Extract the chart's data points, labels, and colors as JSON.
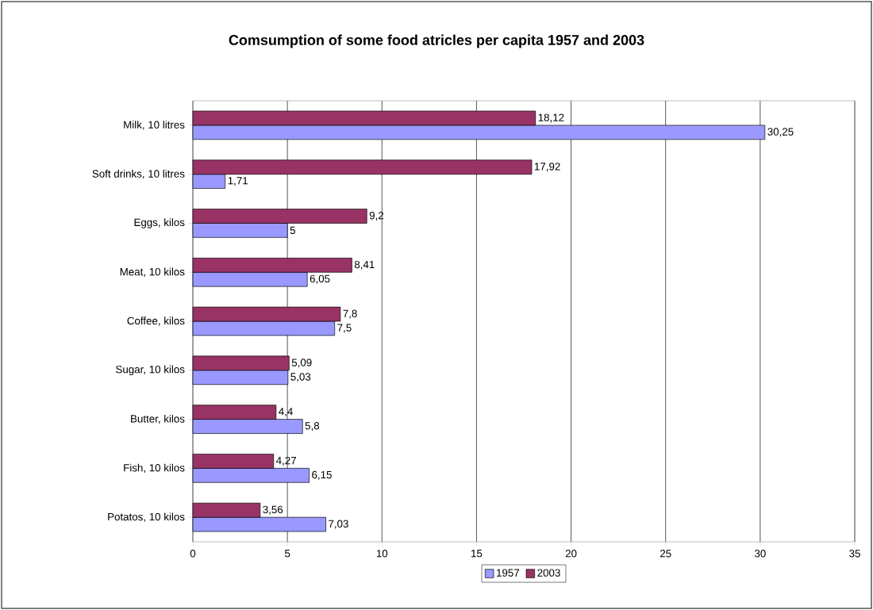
{
  "chart_data": {
    "type": "bar",
    "orientation": "horizontal",
    "title": "Comsumption of some food atricles per capita 1957 and 2003",
    "categories": [
      "Milk, 10 litres",
      "Soft drinks, 10 litres",
      "Eggs, kilos",
      "Meat, 10 kilos",
      "Coffee, kilos",
      "Sugar, 10 kilos",
      "Butter, kilos",
      "Fish, 10 kilos",
      "Potatos, 10 kilos"
    ],
    "series": [
      {
        "name": "1957",
        "color": "#9999ff",
        "values": [
          30.25,
          1.71,
          5,
          6.05,
          7.5,
          5.03,
          5.8,
          6.15,
          7.03
        ],
        "value_labels": [
          "30,25",
          "1,71",
          "5",
          "6,05",
          "7,5",
          "5,03",
          "5,8",
          "6,15",
          "7,03"
        ]
      },
      {
        "name": "2003",
        "color": "#993366",
        "values": [
          18.12,
          17.92,
          9.2,
          8.41,
          7.8,
          5.09,
          4.4,
          4.27,
          3.56
        ],
        "value_labels": [
          "18,12",
          "17,92",
          "9,2",
          "8,41",
          "7,8",
          "5,09",
          "4,4",
          "4,27",
          "3,56"
        ]
      }
    ],
    "xlim": [
      0,
      35
    ],
    "xticks": [
      0,
      5,
      10,
      15,
      20,
      25,
      30,
      35
    ],
    "grid": "x",
    "legend": "bottom"
  }
}
